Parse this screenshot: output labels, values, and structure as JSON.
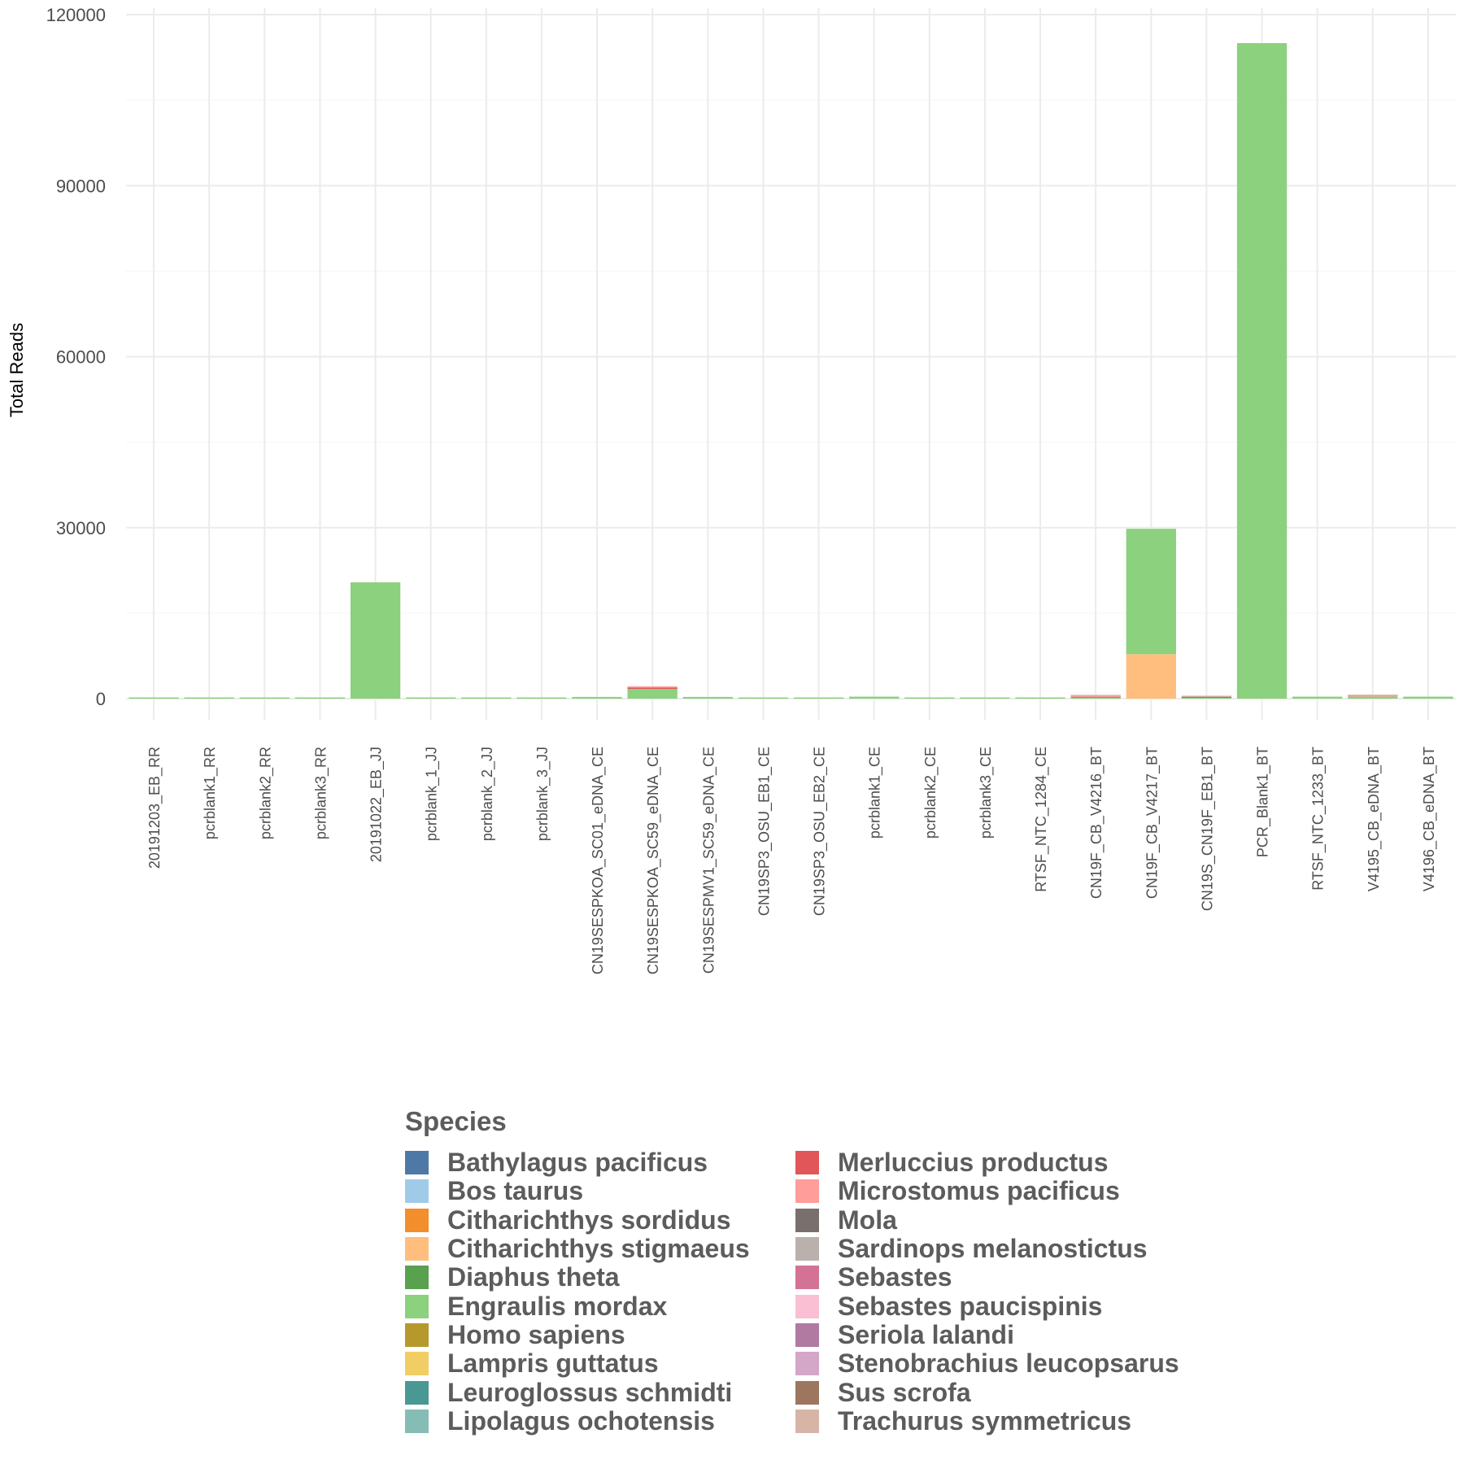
{
  "chart_data": {
    "type": "bar",
    "stacked": true,
    "title": "",
    "xlabel": "",
    "ylabel": "Total Reads",
    "ylim": [
      -4000,
      120000
    ],
    "y_ticks": [
      "0",
      "30000",
      "60000",
      "90000",
      "120000"
    ],
    "y_tick_values": [
      0,
      30000,
      60000,
      90000,
      120000
    ],
    "grid": true,
    "legend_position": "bottom",
    "legend_title": "Species",
    "categories": [
      "20191203_EB_RR",
      "pcrblank1_RR",
      "pcrblank2_RR",
      "pcrblank3_RR",
      "20191022_EB_JJ",
      "pcrblank_1_JJ",
      "pcrblank_2_JJ",
      "pcrblank_3_JJ",
      "CN19SESPKOA_SC01_eDNA_CE",
      "CN19SESPKOA_SC59_eDNA_CE",
      "CN19SESPMV1_SC59_eDNA_CE",
      "CN19SP3_OSU_EB1_CE",
      "CN19SP3_OSU_EB2_CE",
      "pcrblank1_CE",
      "pcrblank2_CE",
      "pcrblank3_CE",
      "RTSF_NTC_1284_CE",
      "CN19F_CB_V4216_BT",
      "CN19F_CB_V4217_BT",
      "CN19S_CN19F_EB1_BT",
      "PCR_Blank1_BT",
      "RTSF_NTC_1233_BT",
      "V4195_CB_eDNA_BT",
      "V4196_CB_eDNA_BT"
    ],
    "series": [
      {
        "name": "Bathylagus pacificus",
        "color": "#4e79a7",
        "values": [
          0,
          0,
          0,
          0,
          0,
          0,
          0,
          0,
          0,
          0,
          0,
          0,
          0,
          0,
          0,
          0,
          0,
          0,
          0,
          0,
          0,
          0,
          0,
          0
        ]
      },
      {
        "name": "Bos taurus",
        "color": "#a0cbe8",
        "values": [
          0,
          0,
          0,
          0,
          0,
          0,
          0,
          0,
          0,
          0,
          0,
          0,
          0,
          0,
          0,
          0,
          0,
          0,
          0,
          0,
          0,
          0,
          0,
          0
        ]
      },
      {
        "name": "Citharichthys sordidus",
        "color": "#f28e2b",
        "values": [
          0,
          0,
          0,
          0,
          0,
          0,
          0,
          0,
          0,
          0,
          0,
          0,
          0,
          0,
          0,
          0,
          0,
          0,
          0,
          0,
          0,
          0,
          0,
          0
        ]
      },
      {
        "name": "Citharichthys stigmaeus",
        "color": "#ffbe7d",
        "values": [
          0,
          0,
          0,
          0,
          0,
          0,
          0,
          0,
          0,
          0,
          0,
          0,
          0,
          0,
          0,
          0,
          0,
          0,
          7800,
          0,
          0,
          0,
          0,
          0
        ]
      },
      {
        "name": "Diaphus theta",
        "color": "#59a14f",
        "values": [
          0,
          0,
          0,
          0,
          0,
          0,
          0,
          0,
          0,
          0,
          0,
          0,
          0,
          0,
          0,
          0,
          0,
          0,
          0,
          0,
          0,
          0,
          0,
          0
        ]
      },
      {
        "name": "Engraulis mordax",
        "color": "#8cd17d",
        "values": [
          60,
          40,
          150,
          60,
          20400,
          40,
          40,
          40,
          300,
          1700,
          300,
          80,
          120,
          350,
          40,
          120,
          120,
          200,
          22000,
          150,
          115000,
          350,
          350,
          350
        ]
      },
      {
        "name": "Homo sapiens",
        "color": "#b6992d",
        "values": [
          0,
          0,
          0,
          0,
          0,
          0,
          0,
          0,
          0,
          0,
          0,
          0,
          0,
          0,
          0,
          0,
          0,
          0,
          0,
          0,
          0,
          0,
          0,
          0
        ]
      },
      {
        "name": "Lampris guttatus",
        "color": "#f1ce63",
        "values": [
          0,
          0,
          0,
          0,
          0,
          0,
          0,
          0,
          0,
          0,
          0,
          0,
          0,
          0,
          0,
          0,
          0,
          0,
          0,
          0,
          0,
          0,
          0,
          0
        ]
      },
      {
        "name": "Leuroglossus schmidti",
        "color": "#499894",
        "values": [
          0,
          0,
          0,
          0,
          0,
          0,
          0,
          0,
          0,
          0,
          0,
          0,
          0,
          0,
          0,
          0,
          0,
          0,
          0,
          0,
          0,
          0,
          0,
          0
        ]
      },
      {
        "name": "Lipolagus ochotensis",
        "color": "#86bcb6",
        "values": [
          0,
          0,
          0,
          0,
          0,
          0,
          0,
          0,
          0,
          0,
          0,
          0,
          0,
          0,
          0,
          0,
          0,
          0,
          0,
          0,
          0,
          0,
          0,
          0
        ]
      },
      {
        "name": "Merluccius productus",
        "color": "#e15759",
        "values": [
          0,
          0,
          0,
          0,
          0,
          0,
          0,
          0,
          0,
          250,
          0,
          0,
          0,
          0,
          0,
          0,
          0,
          100,
          0,
          0,
          0,
          0,
          0,
          0
        ]
      },
      {
        "name": "Microstomus pacificus",
        "color": "#ff9d9a",
        "values": [
          0,
          0,
          0,
          0,
          0,
          0,
          0,
          0,
          0,
          150,
          0,
          0,
          0,
          0,
          0,
          0,
          0,
          150,
          0,
          0,
          0,
          0,
          150,
          0
        ]
      },
      {
        "name": "Mola",
        "color": "#79706e",
        "values": [
          0,
          0,
          0,
          0,
          0,
          0,
          0,
          0,
          0,
          0,
          0,
          0,
          0,
          0,
          0,
          0,
          0,
          0,
          0,
          0,
          0,
          0,
          0,
          0
        ]
      },
      {
        "name": "Sardinops melanostictus",
        "color": "#bab0ac",
        "values": [
          0,
          0,
          0,
          0,
          0,
          0,
          0,
          0,
          0,
          0,
          0,
          0,
          0,
          0,
          0,
          0,
          0,
          0,
          0,
          0,
          0,
          0,
          0,
          0
        ]
      },
      {
        "name": "Sebastes",
        "color": "#d37295",
        "values": [
          0,
          0,
          0,
          0,
          0,
          0,
          0,
          0,
          0,
          0,
          0,
          0,
          0,
          0,
          0,
          0,
          0,
          0,
          0,
          0,
          0,
          0,
          0,
          0
        ]
      },
      {
        "name": "Sebastes paucispinis",
        "color": "#fabfd2",
        "values": [
          0,
          0,
          0,
          0,
          0,
          0,
          0,
          0,
          0,
          0,
          0,
          0,
          0,
          0,
          0,
          0,
          0,
          0,
          0,
          0,
          0,
          0,
          0,
          0
        ]
      },
      {
        "name": "Seriola lalandi",
        "color": "#b07aa1",
        "values": [
          0,
          0,
          0,
          0,
          0,
          0,
          0,
          0,
          0,
          0,
          0,
          0,
          0,
          0,
          0,
          0,
          0,
          0,
          0,
          0,
          0,
          0,
          0,
          0
        ]
      },
      {
        "name": "Stenobrachius leucopsarus",
        "color": "#d4a6c8",
        "values": [
          0,
          0,
          0,
          0,
          0,
          0,
          0,
          0,
          0,
          0,
          0,
          0,
          0,
          0,
          0,
          0,
          0,
          0,
          0,
          0,
          0,
          0,
          0,
          0
        ]
      },
      {
        "name": "Sus scrofa",
        "color": "#9d7660",
        "values": [
          0,
          0,
          0,
          0,
          0,
          0,
          0,
          0,
          0,
          0,
          0,
          0,
          0,
          0,
          0,
          0,
          0,
          0,
          0,
          150,
          0,
          0,
          0,
          0
        ]
      },
      {
        "name": "Trachurus symmetricus",
        "color": "#d7b5a6",
        "values": [
          0,
          0,
          0,
          0,
          0,
          0,
          0,
          0,
          0,
          0,
          0,
          0,
          0,
          0,
          0,
          0,
          0,
          150,
          0,
          100,
          0,
          0,
          150,
          0
        ]
      }
    ]
  }
}
